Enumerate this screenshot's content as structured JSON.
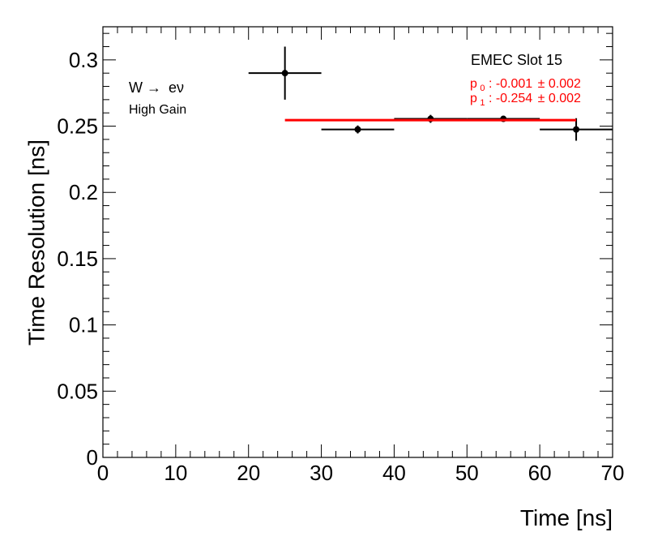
{
  "chart_data": {
    "type": "scatter",
    "xlabel": "Time [ns]",
    "ylabel": "Time Resolution [ns]",
    "xlim": [
      0,
      70
    ],
    "ylim": [
      0,
      0.325
    ],
    "x_ticks": [
      0,
      10,
      20,
      30,
      40,
      50,
      60,
      70
    ],
    "x_tick_labels": [
      "0",
      "10",
      "20",
      "30",
      "40",
      "50",
      "60",
      "70"
    ],
    "y_ticks": [
      0,
      0.05,
      0.1,
      0.15,
      0.2,
      0.25,
      0.3
    ],
    "y_tick_labels": [
      "0",
      "0.05",
      "0.1",
      "0.15",
      "0.2",
      "0.25",
      "0.3"
    ],
    "grid": false,
    "series": [
      {
        "color": "#000000",
        "points": [
          {
            "x": 25,
            "xerr": 5,
            "y": 0.29,
            "yerr": 0.02
          },
          {
            "x": 35,
            "xerr": 5,
            "y": 0.2475,
            "yerr": 0.003
          },
          {
            "x": 45,
            "xerr": 5,
            "y": 0.2555,
            "yerr": 0.003
          },
          {
            "x": 55,
            "xerr": 5,
            "y": 0.2555,
            "yerr": 0.002
          },
          {
            "x": 65,
            "xerr": 5,
            "y": 0.2475,
            "yerr": 0.0085
          }
        ]
      }
    ],
    "fit": {
      "color": "#ff0000",
      "x_range": [
        25,
        65
      ],
      "y": 0.2545
    },
    "annotations": {
      "process_main": "W",
      "process_arrow": "→",
      "process_products": "eν",
      "gain": "High Gain",
      "slot": "EMEC Slot 15",
      "p0_base": "p",
      "p0_sub": "0",
      "p0_text": ": -0.001",
      "p0_pm": "± 0.002",
      "p1_base": "p",
      "p1_sub": "1",
      "p1_text": ": -0.254",
      "p1_pm": "± 0.002"
    }
  }
}
